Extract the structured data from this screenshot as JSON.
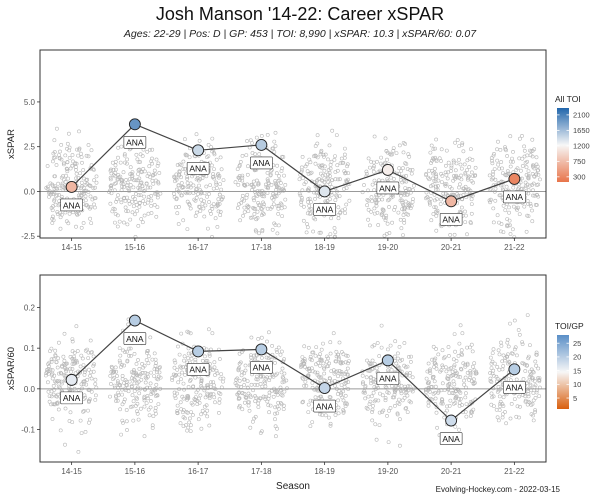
{
  "header": {
    "title": "Josh Manson '14-22: Career xSPAR",
    "subtitle": "Ages: 22-29 | Pos: D | GP: 453 | TOI: 8,990 | xSPAR: 10.3 | xSPAR/60: 0.07"
  },
  "caption": "Evolving-Hockey.com - 2022-03-15",
  "chart_data": [
    {
      "type": "scatter",
      "title": "Josh Manson '14-22: Career xSPAR",
      "xlabel": "",
      "ylabel": "xSPAR",
      "categories": [
        "14-15",
        "15-16",
        "16-17",
        "17-18",
        "18-19",
        "19-20",
        "20-21",
        "21-22"
      ],
      "values": [
        0.25,
        3.75,
        2.3,
        2.6,
        0.0,
        1.2,
        -0.55,
        0.7
      ],
      "labels": [
        "ANA",
        "ANA",
        "ANA",
        "ANA",
        "ANA",
        "ANA",
        "ANA",
        "ANA"
      ],
      "color_values": [
        700,
        1950,
        1450,
        1550,
        1350,
        1150,
        700,
        300
      ],
      "ylim": [
        -2.6,
        7.9
      ],
      "yticks": [
        -2.5,
        0.0,
        2.5,
        5.0
      ],
      "ytick_labels": [
        "-2.5",
        "0.0",
        "2.5",
        "5.0"
      ],
      "reference_line": 0,
      "legend": {
        "title": "All TOI",
        "ticks": [
          300,
          750,
          1200,
          1650,
          2100
        ],
        "range": [
          150,
          2300
        ],
        "colors": [
          "#e8744a",
          "#f7f7f7",
          "#2166ac"
        ],
        "position": "right"
      }
    },
    {
      "type": "scatter",
      "xlabel": "Season",
      "ylabel": "xSPAR/60",
      "categories": [
        "14-15",
        "15-16",
        "16-17",
        "17-18",
        "18-19",
        "19-20",
        "20-21",
        "21-22"
      ],
      "values": [
        0.022,
        0.168,
        0.092,
        0.097,
        0.002,
        0.07,
        -0.078,
        0.048
      ],
      "labels": [
        "ANA",
        "ANA",
        "ANA",
        "ANA",
        "ANA",
        "ANA",
        "ANA",
        "ANA"
      ],
      "color_values": [
        16,
        20,
        20,
        20,
        19,
        20,
        18,
        20
      ],
      "ylim": [
        -0.18,
        0.28
      ],
      "yticks": [
        -0.1,
        0.0,
        0.1,
        0.2
      ],
      "ytick_labels": [
        "-0.1",
        "0.0",
        "0.1",
        "0.2"
      ],
      "reference_line": 0,
      "legend": {
        "title": "TOI/GP",
        "ticks": [
          5,
          10,
          15,
          20,
          25
        ],
        "range": [
          1,
          28
        ],
        "colors": [
          "#d95f0e",
          "#f7f7f7",
          "#5a8fc7"
        ],
        "position": "right"
      }
    }
  ]
}
